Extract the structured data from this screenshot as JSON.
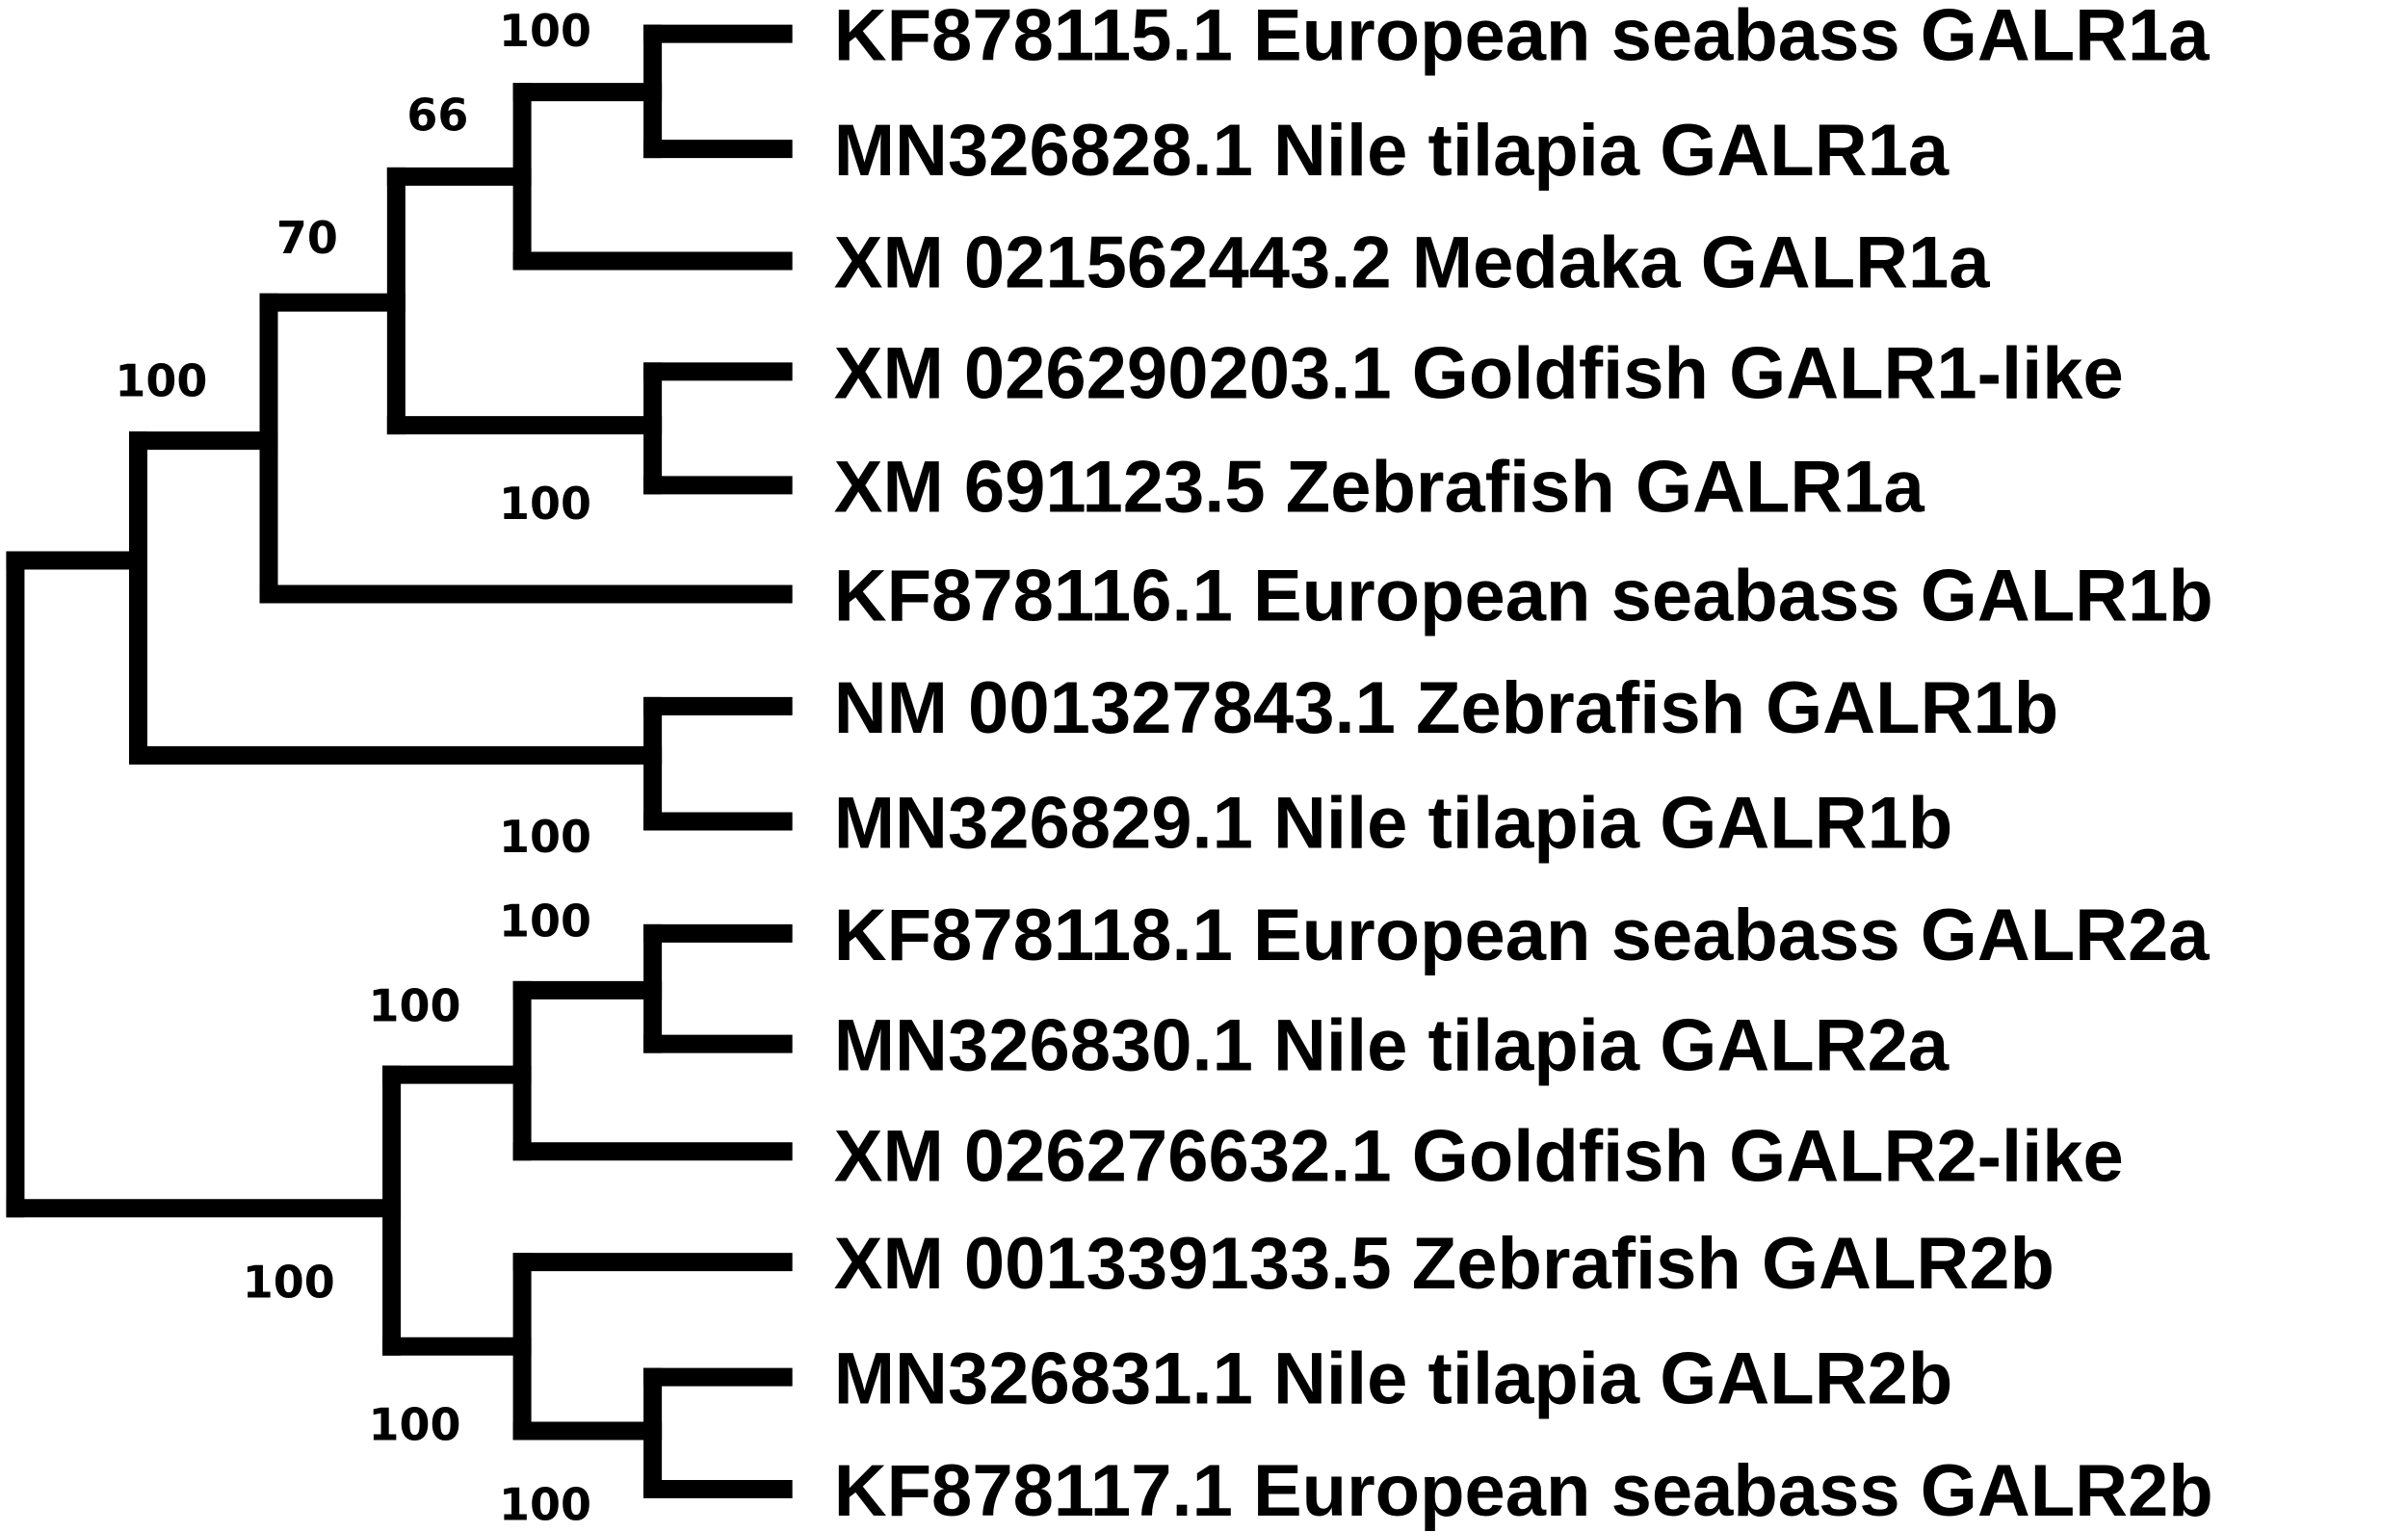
{
  "diagram": {
    "type": "phylogenetic-tree",
    "line_color": "#000000",
    "leaves": [
      "KF878115.1 European seabass GALR1a",
      "MN326828.1 Nile tilapia GALR1a",
      "XM 021562443.2 Medaka GALR1a",
      "XM 026290203.1 Goldfish GALR1-like",
      "XM 691123.5 Zebrafish GALR1a",
      "KF878116.1 European seabass GALR1b",
      "NM 001327843.1 Zebrafish GALR1b",
      "MN326829.1 Nile tilapia GALR1b",
      "KF878118.1 European seabass GALR2a",
      "MN326830.1 Nile tilapia GALR2a",
      "XM 026276632.1 Goldfish GALR2-like",
      "XM 001339133.5 Zebrafish GALR2b",
      "MN326831.1 Nile tilapia GALR2b",
      "KF878117.1 European seabass GALR2b"
    ],
    "support_values": [
      "100",
      "66",
      "70",
      "100",
      "100",
      "100",
      "100",
      "100",
      "100",
      "100",
      "100"
    ]
  }
}
